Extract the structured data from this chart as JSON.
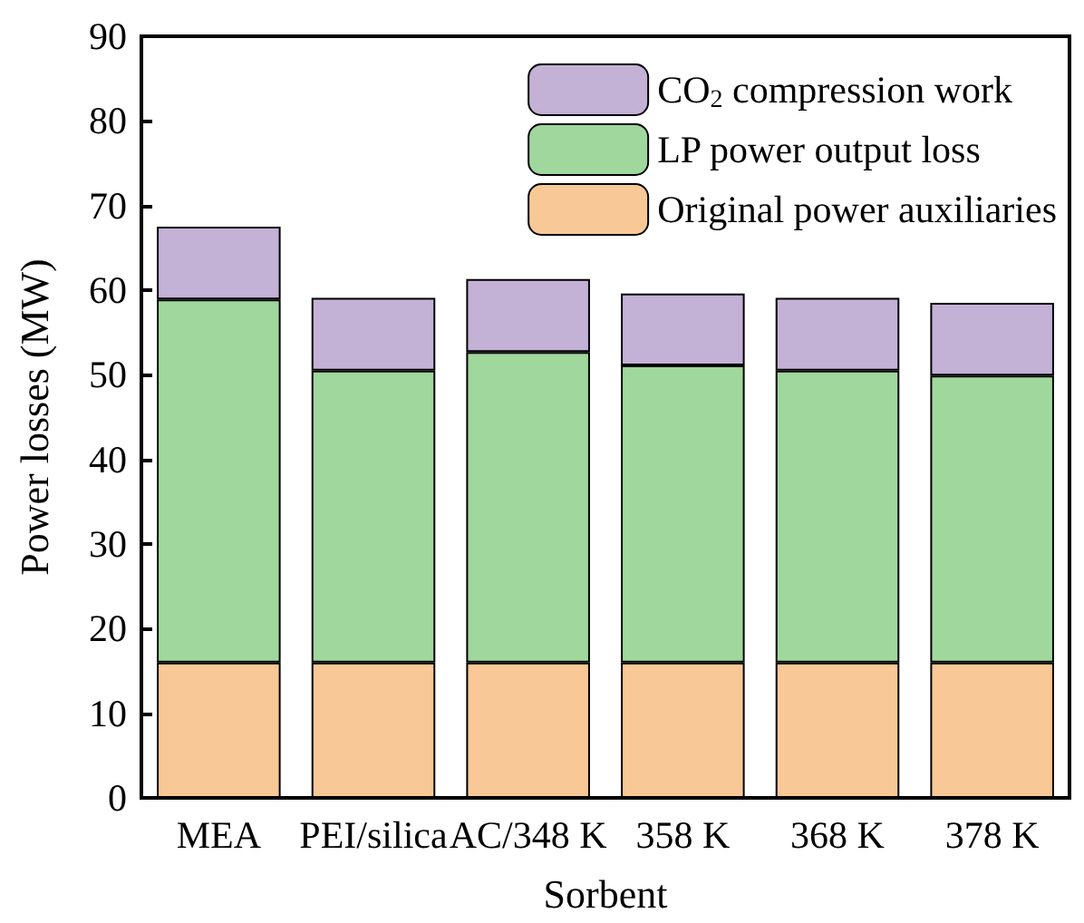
{
  "chart_data": {
    "type": "bar",
    "stacked": true,
    "xlabel": "Sorbent",
    "ylabel": "Power losses (MW)",
    "categories": [
      "MEA",
      "PEI/silica",
      "AC/348 K",
      "358 K",
      "368 K",
      "378 K"
    ],
    "series": [
      {
        "name": "Original power auxiliaries",
        "color": "#f9c897",
        "values": [
          16,
          16,
          16,
          16,
          16,
          16
        ]
      },
      {
        "name": "LP power output loss",
        "color": "#9fd79c",
        "values": [
          42.9,
          34.5,
          36.7,
          35.1,
          34.5,
          33.9
        ]
      },
      {
        "name": "CO$_{2}$ compression work",
        "color": "#c3b1d6",
        "values": [
          8.6,
          8.6,
          8.6,
          8.5,
          8.6,
          8.6
        ]
      }
    ],
    "ylim": [
      0,
      90
    ],
    "yticks": [
      0,
      10,
      20,
      30,
      40,
      50,
      60,
      70,
      80,
      90
    ],
    "grid": false,
    "legend": "top right"
  }
}
